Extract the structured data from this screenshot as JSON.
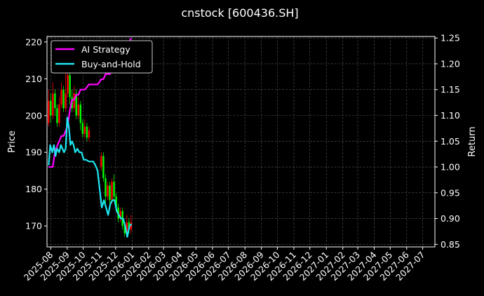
{
  "chart_data": {
    "type": "line",
    "title": "cnstock [600436.SH]",
    "xlabel": "",
    "ylabel_left": "Price",
    "ylabel_right": "Return",
    "grid": true,
    "legend_placement": "top-left",
    "x_tick_labels": [
      "2025-08",
      "2025-09",
      "2025-10",
      "2025-11",
      "2025-12",
      "2026-01",
      "2026-02",
      "2026-03",
      "2026-04",
      "2026-05",
      "2026-06",
      "2026-07",
      "2026-08",
      "2026-09",
      "2026-10",
      "2026-11",
      "2026-12",
      "2027-01",
      "2027-02",
      "2027-03",
      "2027-04",
      "2027-05",
      "2027-06",
      "2027-07"
    ],
    "x_range": [
      "2025-07-25",
      "2027-07-24"
    ],
    "y_left": {
      "ticks": [
        170,
        180,
        190,
        200,
        210,
        220
      ],
      "range": [
        164.3,
        221.5
      ]
    },
    "y_right": {
      "ticks": [
        0.85,
        0.9,
        0.95,
        1.0,
        1.05,
        1.1,
        1.15,
        1.2,
        1.25
      ],
      "range": [
        0.845,
        1.253
      ]
    },
    "candles": [
      {
        "date": "2025-07-28",
        "open": 198,
        "close": 204,
        "high": 207,
        "low": 197
      },
      {
        "date": "2025-08-01",
        "open": 204,
        "close": 200,
        "high": 206,
        "low": 198
      },
      {
        "date": "2025-08-05",
        "open": 200,
        "close": 206,
        "high": 209,
        "low": 199
      },
      {
        "date": "2025-08-09",
        "open": 206,
        "close": 202,
        "high": 207,
        "low": 200
      },
      {
        "date": "2025-08-13",
        "open": 202,
        "close": 198,
        "high": 203,
        "low": 197
      },
      {
        "date": "2025-08-17",
        "open": 198,
        "close": 203,
        "high": 205,
        "low": 197
      },
      {
        "date": "2025-08-21",
        "open": 203,
        "close": 207,
        "high": 209,
        "low": 202
      },
      {
        "date": "2025-08-25",
        "open": 207,
        "close": 202,
        "high": 208,
        "low": 201
      },
      {
        "date": "2025-08-29",
        "open": 202,
        "close": 206,
        "high": 213,
        "low": 201
      },
      {
        "date": "2025-09-02",
        "open": 206,
        "close": 211,
        "high": 214,
        "low": 205
      },
      {
        "date": "2025-09-06",
        "open": 211,
        "close": 205,
        "high": 212,
        "low": 203
      },
      {
        "date": "2025-09-10",
        "open": 205,
        "close": 202,
        "high": 207,
        "low": 201
      },
      {
        "date": "2025-09-14",
        "open": 202,
        "close": 206,
        "high": 208,
        "low": 201
      },
      {
        "date": "2025-09-18",
        "open": 206,
        "close": 200,
        "high": 207,
        "low": 199
      },
      {
        "date": "2025-09-22",
        "open": 200,
        "close": 203,
        "high": 205,
        "low": 199
      },
      {
        "date": "2025-09-26",
        "open": 203,
        "close": 198,
        "high": 204,
        "low": 196
      },
      {
        "date": "2025-09-30",
        "open": 198,
        "close": 195,
        "high": 199,
        "low": 194
      },
      {
        "date": "2025-10-04",
        "open": 195,
        "close": 197,
        "high": 199,
        "low": 194
      },
      {
        "date": "2025-10-08",
        "open": 197,
        "close": 194,
        "high": 198,
        "low": 193
      },
      {
        "date": "2025-10-12",
        "open": 194,
        "close": 196,
        "high": 197,
        "low": 193
      },
      {
        "date": "2025-11-04",
        "open": 186,
        "close": 189,
        "high": 190,
        "low": 185
      },
      {
        "date": "2025-11-08",
        "open": 189,
        "close": 183,
        "high": 190,
        "low": 182
      },
      {
        "date": "2025-11-12",
        "open": 183,
        "close": 178,
        "high": 184,
        "low": 176
      },
      {
        "date": "2025-11-16",
        "open": 178,
        "close": 181,
        "high": 182,
        "low": 177
      },
      {
        "date": "2025-11-20",
        "open": 181,
        "close": 177,
        "high": 182,
        "low": 175
      },
      {
        "date": "2025-11-24",
        "open": 177,
        "close": 182,
        "high": 183,
        "low": 176
      },
      {
        "date": "2025-11-28",
        "open": 182,
        "close": 178,
        "high": 184,
        "low": 177
      },
      {
        "date": "2025-12-02",
        "open": 178,
        "close": 175,
        "high": 179,
        "low": 174
      },
      {
        "date": "2025-12-06",
        "open": 175,
        "close": 172,
        "high": 176,
        "low": 171
      },
      {
        "date": "2025-12-10",
        "open": 172,
        "close": 174,
        "high": 175,
        "low": 171
      },
      {
        "date": "2025-12-14",
        "open": 174,
        "close": 170,
        "high": 175,
        "low": 169
      },
      {
        "date": "2025-12-18",
        "open": 170,
        "close": 168,
        "high": 171,
        "low": 167
      },
      {
        "date": "2025-12-22",
        "open": 168,
        "close": 171,
        "high": 173,
        "low": 167
      },
      {
        "date": "2025-12-26",
        "open": 171,
        "close": 169,
        "high": 172,
        "low": 168
      },
      {
        "date": "2025-12-30",
        "open": 169,
        "close": 171,
        "high": 173,
        "low": 168
      }
    ],
    "series": [
      {
        "name": "AI Strategy",
        "color": "#ff00ff",
        "axis": "right",
        "points": [
          [
            "2025-07-28",
            1.0
          ],
          [
            "2025-08-05",
            1.0
          ],
          [
            "2025-08-09",
            1.03
          ],
          [
            "2025-08-13",
            1.04
          ],
          [
            "2025-08-17",
            1.05
          ],
          [
            "2025-08-21",
            1.06
          ],
          [
            "2025-08-25",
            1.06
          ],
          [
            "2025-08-29",
            1.07
          ],
          [
            "2025-09-02",
            1.08
          ],
          [
            "2025-09-06",
            1.11
          ],
          [
            "2025-09-10",
            1.13
          ],
          [
            "2025-09-14",
            1.13
          ],
          [
            "2025-09-18",
            1.14
          ],
          [
            "2025-09-22",
            1.14
          ],
          [
            "2025-09-26",
            1.15
          ],
          [
            "2025-10-04",
            1.15
          ],
          [
            "2025-10-12",
            1.16
          ],
          [
            "2025-10-20",
            1.16
          ],
          [
            "2025-10-28",
            1.16
          ],
          [
            "2025-11-04",
            1.17
          ],
          [
            "2025-11-08",
            1.17
          ],
          [
            "2025-11-12",
            1.18
          ],
          [
            "2025-11-20",
            1.18
          ],
          [
            "2025-11-28",
            1.19
          ],
          [
            "2025-12-02",
            1.2
          ],
          [
            "2025-12-10",
            1.21
          ],
          [
            "2025-12-14",
            1.22
          ],
          [
            "2025-12-18",
            1.23
          ],
          [
            "2025-12-22",
            1.24
          ],
          [
            "2025-12-26",
            1.24
          ],
          [
            "2025-12-30",
            1.25
          ]
        ]
      },
      {
        "name": "Buy-and-Hold",
        "color": "#1ee6f0",
        "axis": "left",
        "points": [
          [
            "2025-07-28",
            186.5
          ],
          [
            "2025-07-31",
            192
          ],
          [
            "2025-08-04",
            190
          ],
          [
            "2025-08-07",
            192
          ],
          [
            "2025-08-10",
            189
          ],
          [
            "2025-08-13",
            191
          ],
          [
            "2025-08-17",
            190
          ],
          [
            "2025-08-20",
            192
          ],
          [
            "2025-08-23",
            191
          ],
          [
            "2025-08-26",
            190
          ],
          [
            "2025-08-29",
            191
          ],
          [
            "2025-09-01",
            199.5
          ],
          [
            "2025-09-04",
            197
          ],
          [
            "2025-09-07",
            192
          ],
          [
            "2025-09-10",
            193
          ],
          [
            "2025-09-13",
            192
          ],
          [
            "2025-09-16",
            190
          ],
          [
            "2025-09-20",
            191
          ],
          [
            "2025-09-24",
            190
          ],
          [
            "2025-09-28",
            190
          ],
          [
            "2025-10-02",
            188
          ],
          [
            "2025-10-06",
            188
          ],
          [
            "2025-10-12",
            187.5
          ],
          [
            "2025-10-20",
            187.5
          ],
          [
            "2025-10-24",
            186.5
          ],
          [
            "2025-10-28",
            185
          ],
          [
            "2025-11-01",
            180
          ],
          [
            "2025-11-05",
            175
          ],
          [
            "2025-11-09",
            177
          ],
          [
            "2025-11-13",
            175
          ],
          [
            "2025-11-17",
            173
          ],
          [
            "2025-11-21",
            176
          ],
          [
            "2025-11-25",
            177
          ],
          [
            "2025-11-29",
            177
          ],
          [
            "2025-12-03",
            174
          ],
          [
            "2025-12-07",
            173
          ],
          [
            "2025-12-11",
            172
          ],
          [
            "2025-12-15",
            172
          ],
          [
            "2025-12-19",
            170
          ],
          [
            "2025-12-23",
            167
          ],
          [
            "2025-12-27",
            170
          ],
          [
            "2025-12-31",
            170.5
          ]
        ]
      }
    ]
  },
  "colors": {
    "background": "#000000",
    "up": "#ff0000",
    "down": "#00ff00",
    "grid": "#555555"
  }
}
